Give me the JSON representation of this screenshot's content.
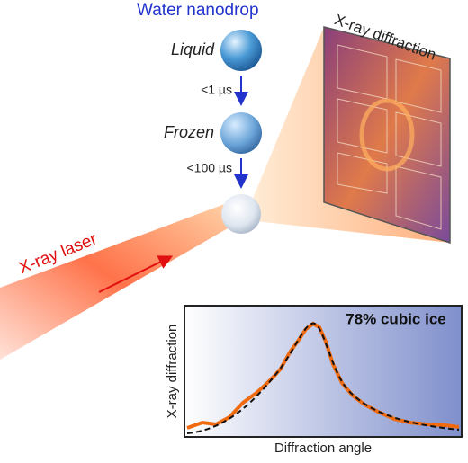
{
  "title": "Water nanodrop",
  "stages": [
    {
      "label": "Liquid"
    },
    {
      "label": "Frozen"
    }
  ],
  "transitions": [
    "<1 µs",
    "<100 µs"
  ],
  "detector": {
    "label": "X-ray diffraction"
  },
  "laser": {
    "label": "X-ray laser"
  },
  "inset": {
    "annotation": "78% cubic ice",
    "y_label": "X-ray diffraction",
    "x_label": "Diffraction angle"
  }
}
